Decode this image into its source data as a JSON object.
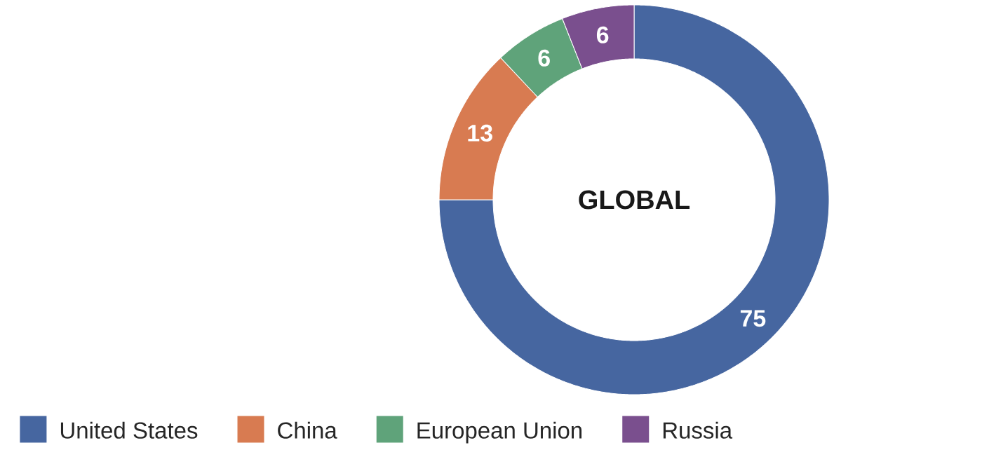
{
  "chart_data": {
    "type": "donut",
    "title": "GLOBAL",
    "categories": [
      "United States",
      "China",
      "European Union",
      "Russia"
    ],
    "values": [
      75,
      13,
      6,
      6
    ],
    "colors": [
      "#4666a0",
      "#d87b51",
      "#5fa37a",
      "#7a4f8e"
    ],
    "data_labels": true,
    "legend": "bottom"
  }
}
